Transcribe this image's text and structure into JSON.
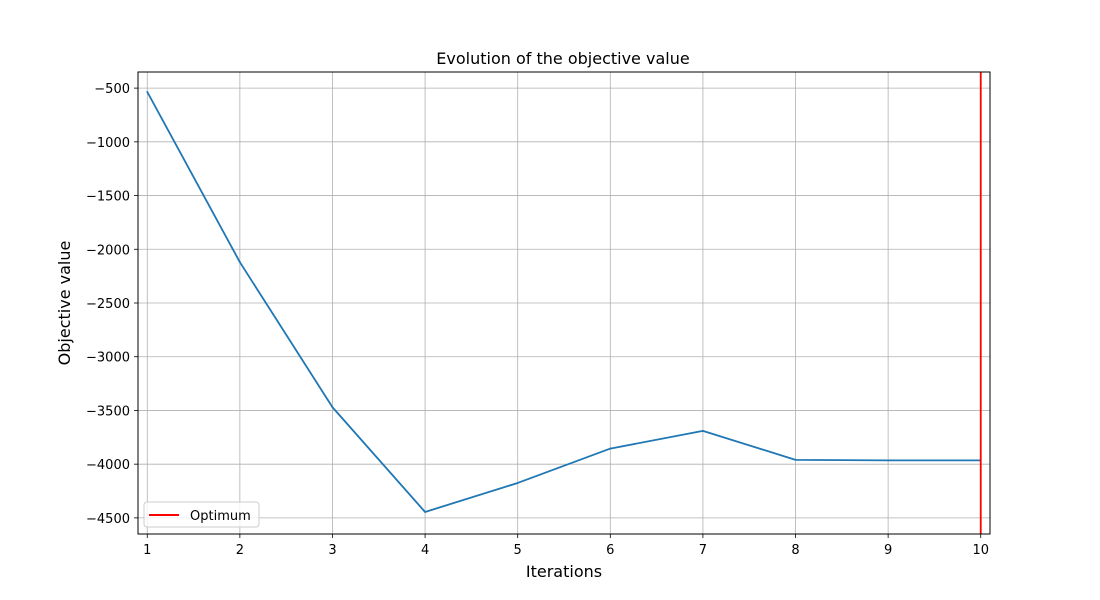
{
  "chart_data": {
    "type": "line",
    "title": "Evolution of the objective value",
    "xlabel": "Iterations",
    "ylabel": "Objective value",
    "xlim": [
      0.9,
      10.1
    ],
    "ylim": [
      -4650,
      -350
    ],
    "x_ticks": [
      1,
      2,
      3,
      4,
      5,
      6,
      7,
      8,
      9,
      10
    ],
    "y_ticks": [
      -500,
      -1000,
      -1500,
      -2000,
      -2500,
      -3000,
      -3500,
      -4000,
      -4500
    ],
    "y_tick_labels": [
      "−500",
      "−1000",
      "−1500",
      "−2000",
      "−2500",
      "−3000",
      "−3500",
      "−4000",
      "−4500"
    ],
    "grid": true,
    "series": [
      {
        "x": [
          1,
          2,
          3,
          4,
          5,
          6,
          7,
          8,
          9,
          10
        ],
        "values": [
          -535,
          -2120,
          -3470,
          -4445,
          -4175,
          -3855,
          -3690,
          -3960,
          -3965,
          -3965
        ],
        "color": "#1f77b4"
      }
    ],
    "vertical_lines": [
      {
        "name": "Optimum",
        "x": 10,
        "color": "#ff0000"
      }
    ],
    "legend": {
      "placement": "lower-left",
      "entries": [
        {
          "label": "Optimum",
          "color": "#ff0000"
        }
      ]
    }
  }
}
